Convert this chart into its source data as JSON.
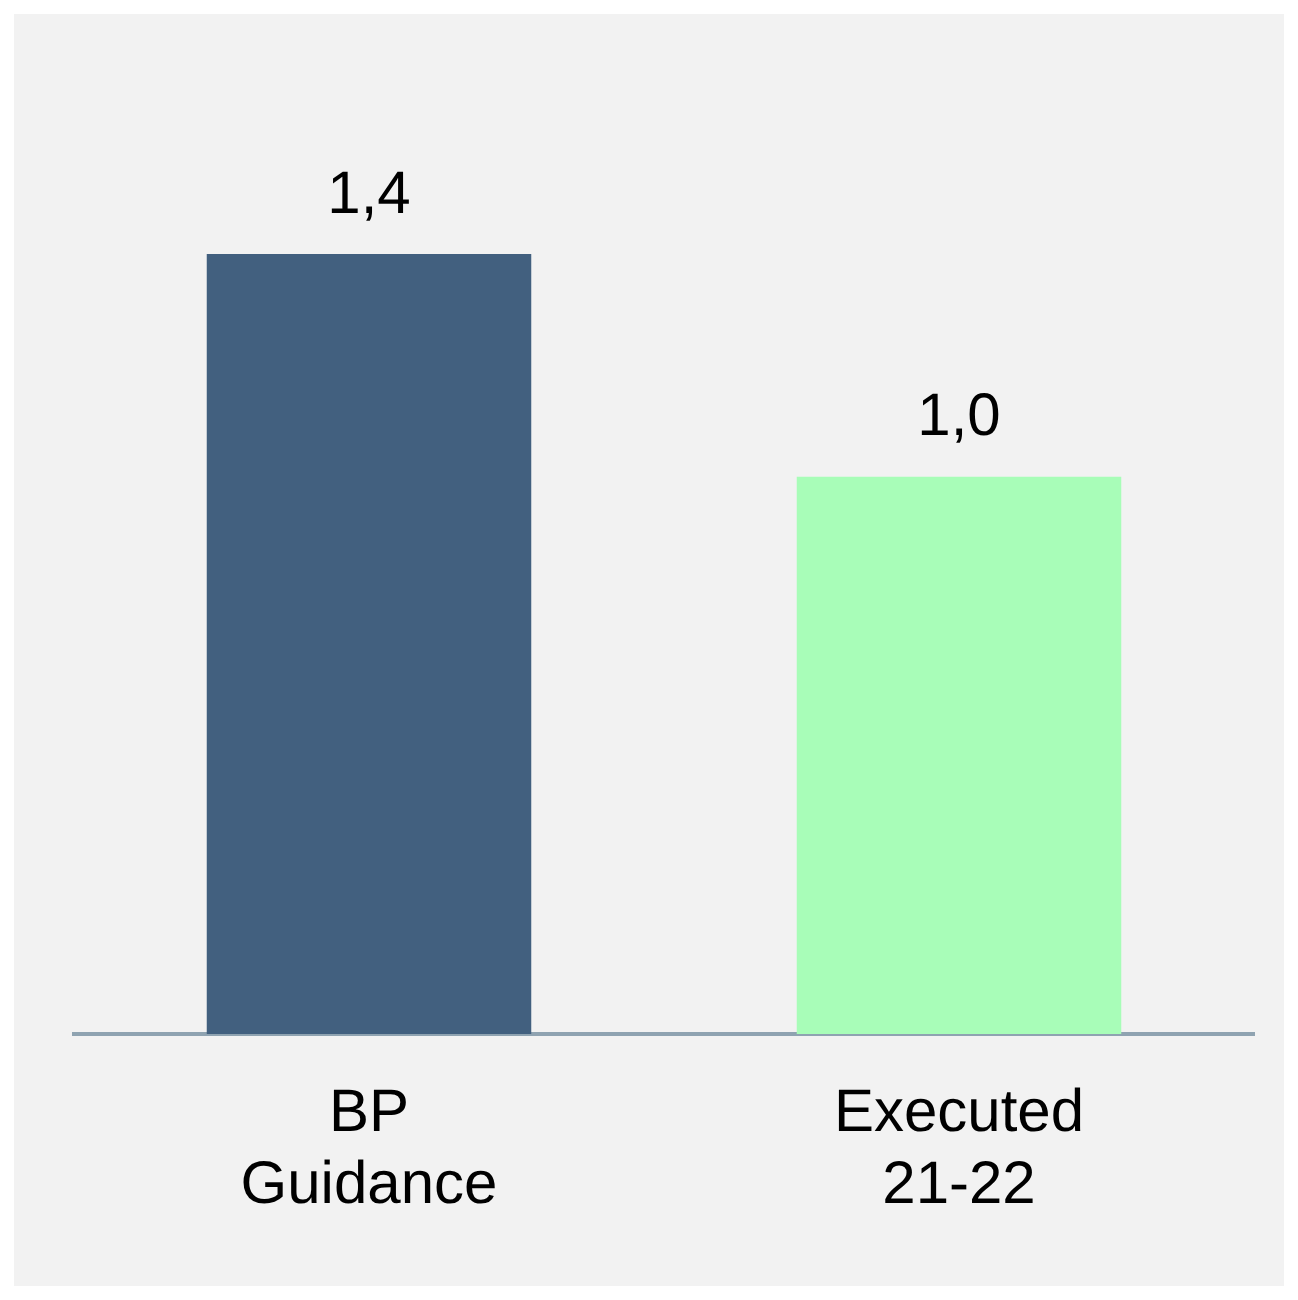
{
  "chart_data": {
    "type": "bar",
    "categories": [
      "BP Guidance",
      "Executed 21-22"
    ],
    "values": [
      1.4,
      1.0
    ],
    "colors": [
      "#42607f",
      "#a8fdb8"
    ],
    "value_labels": [
      "1,4",
      "1,0"
    ],
    "tick_labels": "x",
    "grid": false,
    "legend": false
  }
}
